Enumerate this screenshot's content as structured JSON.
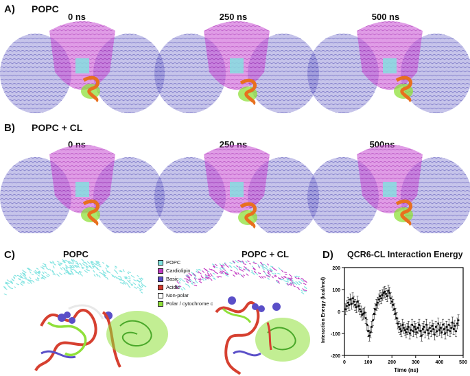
{
  "panels": {
    "a": {
      "label": "A)",
      "title": "POPC",
      "times": [
        "0 ns",
        "250 ns",
        "500 ns"
      ]
    },
    "b": {
      "label": "B)",
      "title": "POPC + CL",
      "times": [
        "0 ns",
        "250 ns",
        "500ns"
      ]
    },
    "c": {
      "label": "C)",
      "title_left": "POPC",
      "title_right": "POPC + CL"
    },
    "d": {
      "label": "D)",
      "title": "QCR6-CL Interaction Energy"
    }
  },
  "legend": [
    {
      "label": "POPC",
      "color": "#7fe3e0"
    },
    {
      "label": "Cardiolipin",
      "color": "#c23bc2"
    },
    {
      "label": "Basic",
      "color": "#5a4fc8"
    },
    {
      "label": "Acidic",
      "color": "#d63a2c"
    },
    {
      "label": "Non-polar",
      "color": "#ffffff"
    },
    {
      "label": "Polar / cytochrome c",
      "color": "#8fe03a"
    }
  ],
  "colors": {
    "complex_blue": "#5b57c4",
    "complex_magenta": "#c64ad2",
    "cl_orange": "#e8701e",
    "cyt_green": "#8fe03a"
  },
  "chart_data": {
    "type": "scatter",
    "title": "QCR6-CL Interaction Energy",
    "xlabel": "Time (ns)",
    "ylabel": "Interaction Energy  (kcal/mol)",
    "xlim": [
      0,
      500
    ],
    "ylim": [
      -200,
      200
    ],
    "xticks": [
      0,
      100,
      200,
      300,
      400,
      500
    ],
    "yticks": [
      -200,
      -100,
      0,
      100,
      200
    ],
    "error_bars": true,
    "x": [
      5,
      10,
      15,
      20,
      25,
      30,
      35,
      40,
      45,
      50,
      55,
      60,
      65,
      70,
      75,
      80,
      85,
      90,
      95,
      100,
      105,
      110,
      115,
      120,
      125,
      130,
      135,
      140,
      145,
      150,
      155,
      160,
      165,
      170,
      175,
      180,
      185,
      190,
      195,
      200,
      205,
      210,
      215,
      220,
      225,
      230,
      235,
      240,
      245,
      250,
      255,
      260,
      265,
      270,
      275,
      280,
      285,
      290,
      295,
      300,
      305,
      310,
      315,
      320,
      325,
      330,
      335,
      340,
      345,
      350,
      355,
      360,
      365,
      370,
      375,
      380,
      385,
      390,
      395,
      400,
      405,
      410,
      415,
      420,
      425,
      430,
      435,
      440,
      445,
      450,
      455,
      460,
      465,
      470,
      475,
      480
    ],
    "y": [
      10,
      25,
      40,
      30,
      55,
      35,
      60,
      45,
      30,
      20,
      45,
      25,
      10,
      0,
      -15,
      -10,
      -5,
      -30,
      -60,
      -90,
      -110,
      -95,
      -70,
      -40,
      -10,
      10,
      30,
      40,
      55,
      70,
      60,
      75,
      85,
      90,
      80,
      70,
      95,
      85,
      60,
      45,
      30,
      10,
      -10,
      -30,
      -55,
      -70,
      -80,
      -90,
      -60,
      -75,
      -85,
      -95,
      -80,
      -70,
      -100,
      -85,
      -60,
      -90,
      -70,
      -80,
      -95,
      -75,
      -60,
      -90,
      -110,
      -80,
      -70,
      -95,
      -60,
      -85,
      -100,
      -75,
      -90,
      -65,
      -80,
      -105,
      -70,
      -90,
      -55,
      -85,
      -75,
      -95,
      -60,
      -80,
      -100,
      -70,
      -85,
      -60,
      -90,
      -75,
      -50,
      -80,
      -65,
      -90,
      -55,
      -40
    ],
    "err": [
      25,
      25,
      25,
      25,
      25,
      25,
      25,
      25,
      25,
      25,
      25,
      25,
      25,
      25,
      25,
      25,
      25,
      25,
      25,
      25,
      25,
      25,
      25,
      25,
      25,
      25,
      25,
      25,
      25,
      25,
      25,
      25,
      25,
      25,
      25,
      25,
      25,
      25,
      25,
      25,
      25,
      25,
      25,
      25,
      25,
      25,
      25,
      25,
      25,
      25,
      25,
      25,
      25,
      25,
      25,
      25,
      25,
      25,
      25,
      25,
      25,
      25,
      25,
      25,
      25,
      25,
      25,
      25,
      25,
      25,
      25,
      25,
      25,
      25,
      25,
      25,
      25,
      25,
      25,
      25,
      25,
      25,
      25,
      25,
      25,
      25,
      25,
      25,
      25,
      25,
      25,
      25,
      25,
      25,
      25,
      25
    ]
  }
}
